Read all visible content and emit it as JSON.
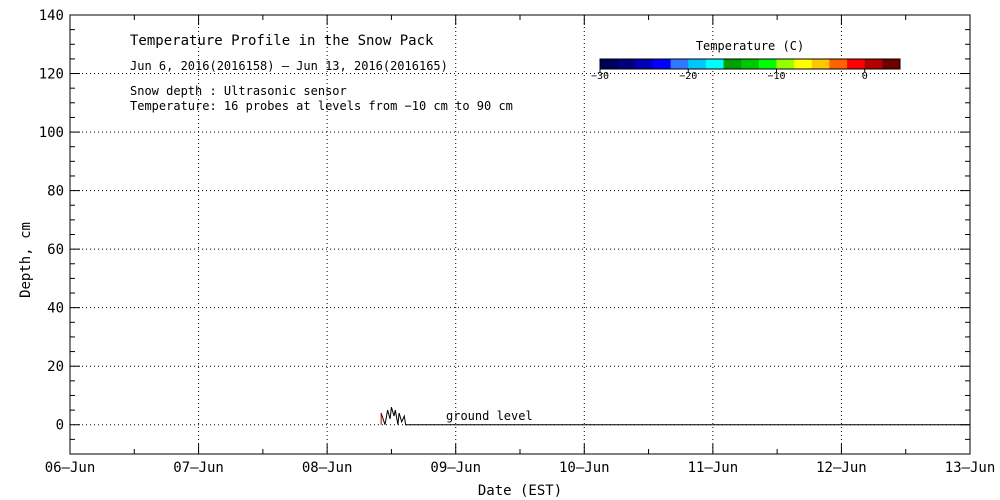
{
  "chart_data": {
    "type": "line",
    "title": "Temperature Profile in the Snow Pack",
    "subtitle": "Jun  6, 2016(2016158) – Jun 13, 2016(2016165)",
    "notes": [
      "Snow depth : Ultrasonic sensor",
      "Temperature: 16 probes at levels from −10 cm to 90 cm"
    ],
    "xlabel": "Date (EST)",
    "ylabel": "Depth, cm",
    "x_ticks": [
      "06–Jun",
      "07–Jun",
      "08–Jun",
      "09–Jun",
      "10–Jun",
      "11–Jun",
      "12–Jun",
      "13–Jun"
    ],
    "xlim_days": [
      0,
      7
    ],
    "ylim": [
      -10,
      140
    ],
    "y_ticks": [
      0,
      20,
      40,
      60,
      80,
      100,
      120,
      140
    ],
    "grid": true,
    "colorbar": {
      "title": "Temperature (C)",
      "ticks": [
        "−30",
        "−20",
        "−10",
        "0"
      ],
      "range": [
        -30,
        4
      ],
      "colors": [
        "#00005a",
        "#000080",
        "#0000b4",
        "#0000ff",
        "#3278ff",
        "#00c8ff",
        "#00ffff",
        "#00a000",
        "#00c800",
        "#00ff00",
        "#96ff00",
        "#ffff00",
        "#ffc800",
        "#ff6400",
        "#ff0000",
        "#b40000",
        "#6e0000"
      ]
    },
    "annotation": "ground level",
    "series": [
      {
        "color": "#000000",
        "points": [
          [
            2.42,
            4
          ],
          [
            2.45,
            0
          ],
          [
            2.47,
            5
          ],
          [
            2.49,
            2
          ],
          [
            2.5,
            6
          ],
          [
            2.52,
            3
          ],
          [
            2.53,
            5
          ],
          [
            2.55,
            0
          ],
          [
            2.56,
            4
          ],
          [
            2.58,
            1
          ],
          [
            2.6,
            3
          ],
          [
            2.61,
            0
          ],
          [
            7.0,
            0
          ]
        ]
      }
    ],
    "marker_lines": [
      {
        "x": 2.42,
        "y0": 0,
        "y1": 4,
        "color": "#b40000"
      }
    ]
  }
}
